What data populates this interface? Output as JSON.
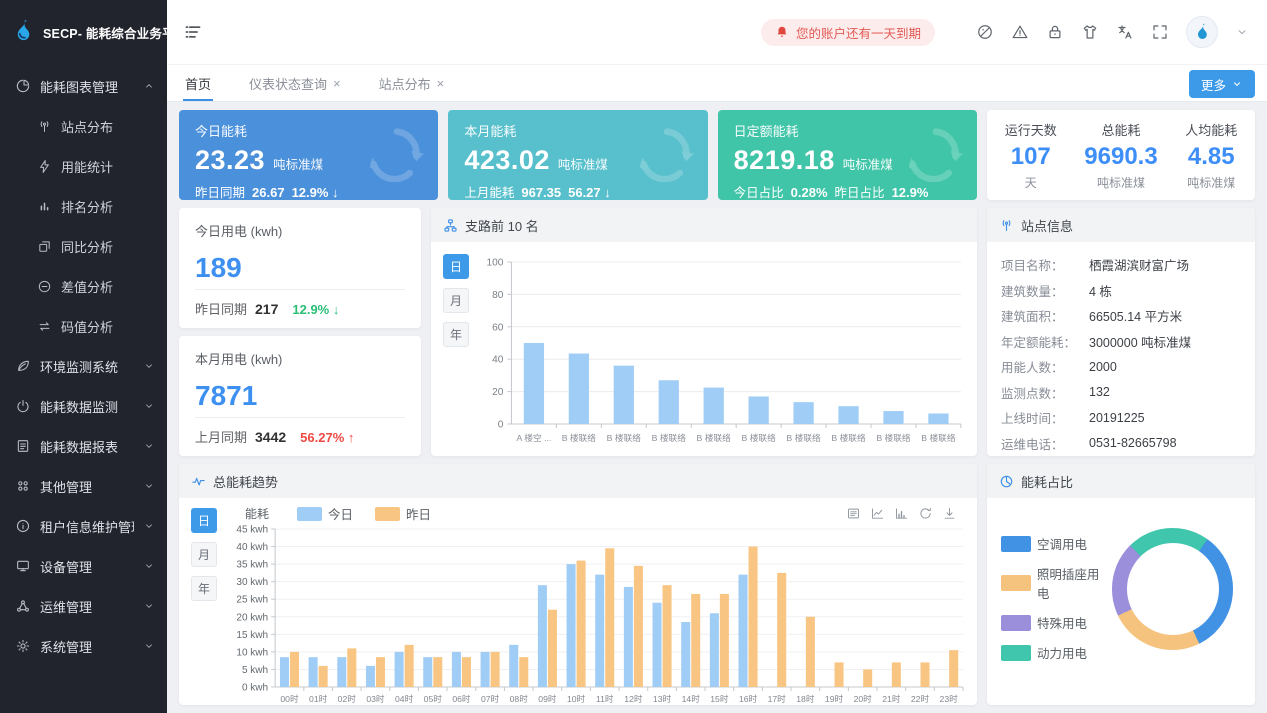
{
  "app": {
    "logo_title": "SECP- 能耗综合业务平台",
    "logo_icon": "flame-icon"
  },
  "header": {
    "collapse_icon": "collapse-menu-icon",
    "alert_text": "您的账户还有一天到期",
    "alert_icon": "bell-icon",
    "icon_names": [
      "palette-icon",
      "warning-icon",
      "lock-icon",
      "skin-icon",
      "translate-icon",
      "fullscreen-icon"
    ],
    "avatar_icon": "flame-icon",
    "dropdown_icon": "chevron-down-icon"
  },
  "tab_bar": {
    "tabs": [
      {
        "label": "首页",
        "active": true,
        "closable": false
      },
      {
        "label": "仪表状态查询",
        "active": false,
        "closable": true
      },
      {
        "label": "站点分布",
        "active": false,
        "closable": true
      }
    ],
    "more_label": "更多"
  },
  "sidebar": {
    "groups": [
      {
        "label": "能耗图表管理",
        "icon": "pie-chart-icon",
        "expanded": true,
        "children": [
          {
            "label": "站点分布",
            "icon": "antenna-icon"
          },
          {
            "label": "用能统计",
            "icon": "lightning-icon"
          },
          {
            "label": "排名分析",
            "icon": "rank-bars-icon"
          },
          {
            "label": "同比分析",
            "icon": "copy-icon"
          },
          {
            "label": "差值分析",
            "icon": "minus-circle-icon"
          },
          {
            "label": "码值分析",
            "icon": "swap-icon"
          }
        ]
      },
      {
        "label": "环境监测系统",
        "icon": "leaf-icon",
        "expanded": false,
        "children": []
      },
      {
        "label": "能耗数据监测",
        "icon": "power-gauge-icon",
        "expanded": false,
        "children": []
      },
      {
        "label": "能耗数据报表",
        "icon": "report-icon",
        "expanded": false,
        "children": []
      },
      {
        "label": "其他管理",
        "icon": "grid-dots-icon",
        "expanded": false,
        "children": []
      },
      {
        "label": "租户信息维护管理",
        "icon": "info-icon",
        "expanded": false,
        "children": []
      },
      {
        "label": "设备管理",
        "icon": "device-icon",
        "expanded": false,
        "children": []
      },
      {
        "label": "运维管理",
        "icon": "nodes-icon",
        "expanded": false,
        "children": []
      },
      {
        "label": "系统管理",
        "icon": "gear-icon",
        "expanded": false,
        "children": []
      }
    ]
  },
  "kpi_cards": [
    {
      "title": "今日能耗",
      "value": "23.23",
      "unit": "吨标准煤",
      "bg": "#4b90da",
      "sub": [
        {
          "text": "昨日同期",
          "bold": false
        },
        {
          "text": "26.67",
          "bold": true
        },
        {
          "text": "12.9% ↓",
          "bold": true
        }
      ]
    },
    {
      "title": "本月能耗",
      "value": "423.02",
      "unit": "吨标准煤",
      "bg": "#58c0cc",
      "sub": [
        {
          "text": "上月能耗",
          "bold": false
        },
        {
          "text": "967.35",
          "bold": true
        },
        {
          "text": "56.27 ↓",
          "bold": true
        }
      ]
    },
    {
      "title": "日定额能耗",
      "value": "8219.18",
      "unit": "吨标准煤",
      "bg": "#41c5a8",
      "sub": [
        {
          "text": "今日占比",
          "bold": false
        },
        {
          "text": "0.28%",
          "bold": true
        },
        {
          "text": "昨日占比",
          "bold": false
        },
        {
          "text": "12.9%",
          "bold": true
        }
      ]
    }
  ],
  "summary_card": {
    "value_color": "#3e8ef7",
    "stats": [
      {
        "label": "运行天数",
        "value": "107",
        "unit": "天"
      },
      {
        "label": "总能耗",
        "value": "9690.3",
        "unit": "吨标准煤"
      },
      {
        "label": "人均能耗",
        "value": "4.85",
        "unit": "吨标准煤"
      }
    ]
  },
  "usage_cards": [
    {
      "title": "今日用电 (kwh)",
      "value": "189",
      "compare_label": "昨日同期",
      "compare_value": "217",
      "percent": "12.9% ↓",
      "percent_color": "#2abf76"
    },
    {
      "title": "本月用电 (kwh)",
      "value": "7871",
      "compare_label": "上月同期",
      "compare_value": "3442",
      "percent": "56.27% ↑",
      "percent_color": "#f04a44"
    }
  ],
  "site_info": {
    "title": "站点信息",
    "header_icon": "antenna-icon",
    "rows": [
      {
        "label": "项目名称：",
        "value": "栖霞湖滨财富广场"
      },
      {
        "label": "建筑数量：",
        "value": "4 栋"
      },
      {
        "label": "建筑面积：",
        "value": "66505.14 平方米"
      },
      {
        "label": "年定额能耗：",
        "value": "3000000 吨标准煤"
      },
      {
        "label": "用能人数：",
        "value": "2000"
      },
      {
        "label": "监测点数：",
        "value": "132"
      },
      {
        "label": "上线时间：",
        "value": "20191225"
      },
      {
        "label": "运维电话：",
        "value": "0531-82665798"
      }
    ]
  },
  "chart_data": [
    {
      "id": "branch_top10",
      "type": "bar",
      "title": "支路前 10 名",
      "header_icon": "org-chart-icon",
      "period_buttons": [
        "日",
        "月",
        "年"
      ],
      "active_period": "日",
      "categories": [
        "A 楼空 ...",
        "B 楼联络",
        "B 楼联络",
        "B 楼联络",
        "B 楼联络",
        "B 楼联络",
        "B 楼联络",
        "B 楼联络",
        "B 楼联络",
        "B 楼联络"
      ],
      "values": [
        50,
        43.5,
        36,
        27,
        22.5,
        17,
        13.5,
        11,
        8,
        6.5
      ],
      "bar_color": "#a0cdf5",
      "ylim": [
        0,
        100
      ],
      "yticks": [
        0,
        20,
        40,
        60,
        80,
        100
      ],
      "grid": true,
      "legend_position": "none"
    },
    {
      "id": "energy_trend",
      "type": "bar",
      "title": "总能耗趋势",
      "header_icon": "pulse-icon",
      "period_buttons": [
        "日",
        "月",
        "年"
      ],
      "active_period": "日",
      "axis_name": "能耗",
      "unit": "kwh",
      "categories": [
        "00时",
        "01时",
        "02时",
        "03时",
        "04时",
        "05时",
        "06时",
        "07时",
        "08时",
        "09时",
        "10时",
        "11时",
        "12时",
        "13时",
        "14时",
        "15时",
        "16时",
        "17时",
        "18时",
        "19时",
        "20时",
        "21时",
        "22时",
        "23时"
      ],
      "series": [
        {
          "name": "今日",
          "color": "#a0cdf5",
          "values": [
            8.5,
            8.5,
            8.5,
            6,
            10,
            8.5,
            10,
            10,
            12,
            29,
            35,
            32,
            28.5,
            24,
            18.5,
            21,
            32,
            null,
            null,
            null,
            null,
            null,
            null,
            null
          ]
        },
        {
          "name": "昨日",
          "color": "#f8c583",
          "values": [
            10,
            6,
            11,
            8.5,
            12,
            8.5,
            8.5,
            10,
            8.5,
            22,
            36,
            39.5,
            34.5,
            29,
            26.5,
            26.5,
            40,
            32.5,
            20,
            7,
            5,
            7,
            7,
            10.5
          ]
        }
      ],
      "ylim": [
        0,
        45
      ],
      "ytick_step": 5,
      "ytick_suffix": " kwh",
      "grid": true,
      "legend_position": "top",
      "toolbox_icons": [
        "data-view-icon",
        "line-chart-icon",
        "bar-chart-icon",
        "refresh-icon",
        "download-icon"
      ]
    },
    {
      "id": "energy_share",
      "type": "pie",
      "title": "能耗占比",
      "header_icon": "pie-clock-icon",
      "legend_position": "left",
      "start_angle_deg": 35,
      "slices": [
        {
          "name": "空调用电",
          "value": 33,
          "color": "#4192e4"
        },
        {
          "name": "照明插座用电",
          "value": 25,
          "color": "#f5c37d"
        },
        {
          "name": "特殊用电",
          "value": 20,
          "color": "#9b8fdb"
        },
        {
          "name": "动力用电",
          "value": 22,
          "color": "#40c6ad"
        }
      ]
    }
  ]
}
